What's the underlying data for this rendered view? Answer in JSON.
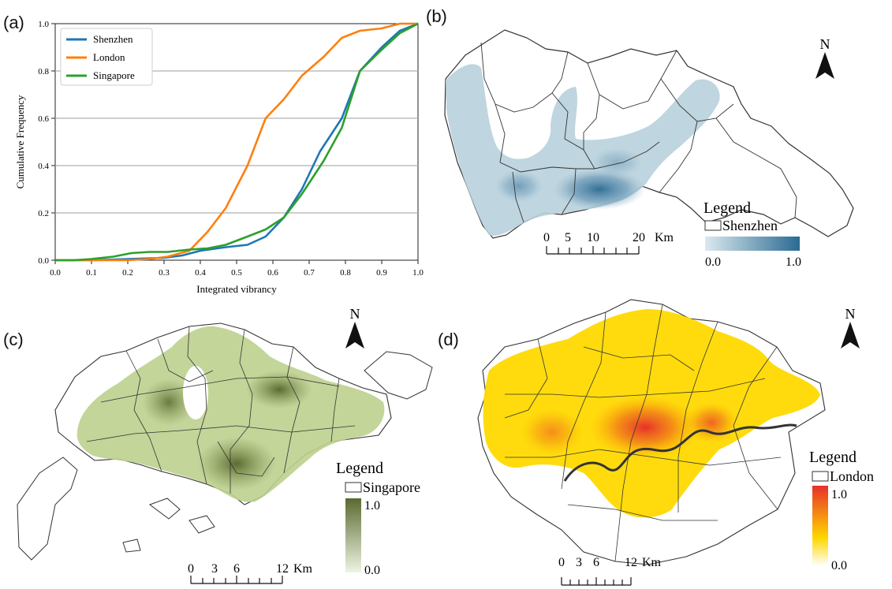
{
  "panels": {
    "a": "(a)",
    "b": "(b)",
    "c": "(c)",
    "d": "(d)"
  },
  "chart_data": {
    "type": "line",
    "xlabel": "Integrated vibrancy",
    "ylabel": "Cumulative Frequency",
    "xlim": [
      0.0,
      1.0
    ],
    "ylim": [
      0.0,
      1.0
    ],
    "xticks": [
      "0.0",
      "0.1",
      "0.2",
      "0.3",
      "0.4",
      "0.5",
      "0.6",
      "0.7",
      "0.8",
      "0.9",
      "1.0"
    ],
    "yticks": [
      "0.0",
      "0.2",
      "0.4",
      "0.6",
      "0.8",
      "1.0"
    ],
    "grid": "horizontal",
    "legend": "top-left",
    "series": [
      {
        "name": "Shenzhen",
        "color": "#1f77b4",
        "x": [
          0.0,
          0.1,
          0.2,
          0.3,
          0.35,
          0.4,
          0.47,
          0.53,
          0.58,
          0.63,
          0.68,
          0.73,
          0.79,
          0.84,
          0.9,
          0.95,
          1.0
        ],
        "y": [
          0.0,
          0.0,
          0.005,
          0.01,
          0.02,
          0.04,
          0.055,
          0.065,
          0.1,
          0.18,
          0.3,
          0.46,
          0.6,
          0.8,
          0.9,
          0.97,
          1.0
        ]
      },
      {
        "name": "London",
        "color": "#ff7f0e",
        "x": [
          0.0,
          0.1,
          0.2,
          0.26,
          0.31,
          0.37,
          0.42,
          0.47,
          0.53,
          0.58,
          0.63,
          0.68,
          0.74,
          0.79,
          0.84,
          0.9,
          0.95,
          1.0
        ],
        "y": [
          0.0,
          0.0,
          0.0,
          0.005,
          0.015,
          0.04,
          0.12,
          0.22,
          0.4,
          0.6,
          0.68,
          0.78,
          0.86,
          0.94,
          0.97,
          0.98,
          1.0,
          1.0
        ]
      },
      {
        "name": "Singapore",
        "color": "#2ca02c",
        "x": [
          0.0,
          0.05,
          0.1,
          0.16,
          0.21,
          0.26,
          0.31,
          0.37,
          0.42,
          0.47,
          0.53,
          0.58,
          0.63,
          0.68,
          0.74,
          0.79,
          0.84,
          0.9,
          0.95,
          1.0
        ],
        "y": [
          0.0,
          0.0,
          0.005,
          0.015,
          0.03,
          0.035,
          0.035,
          0.045,
          0.05,
          0.065,
          0.1,
          0.13,
          0.18,
          0.28,
          0.42,
          0.56,
          0.8,
          0.89,
          0.96,
          1.0
        ]
      }
    ]
  },
  "maps": {
    "shenzhen": {
      "north": "N",
      "legend_title": "Legend",
      "legend_label": "Shenzhen",
      "min": "0.0",
      "max": "1.0",
      "scale": [
        "0",
        "5",
        "10",
        "20"
      ],
      "scale_unit": "Km",
      "ramp": [
        "#dbe9ef",
        "#2a6a92"
      ]
    },
    "singapore": {
      "north": "N",
      "legend_title": "Legend",
      "legend_label": "Singapore",
      "min": "0.0",
      "max": "1.0",
      "scale": [
        "0",
        "3",
        "6",
        "12"
      ],
      "scale_unit": "Km",
      "ramp": [
        "#eef4e2",
        "#5a6a30"
      ]
    },
    "london": {
      "north": "N",
      "legend_title": "Legend",
      "legend_label": "London",
      "min": "0.0",
      "max": "1.0",
      "scale": [
        "0",
        "3",
        "6",
        "12"
      ],
      "scale_unit": "Km",
      "ramp": [
        "#ffffff",
        "#ffd700",
        "#e8302a"
      ]
    }
  }
}
